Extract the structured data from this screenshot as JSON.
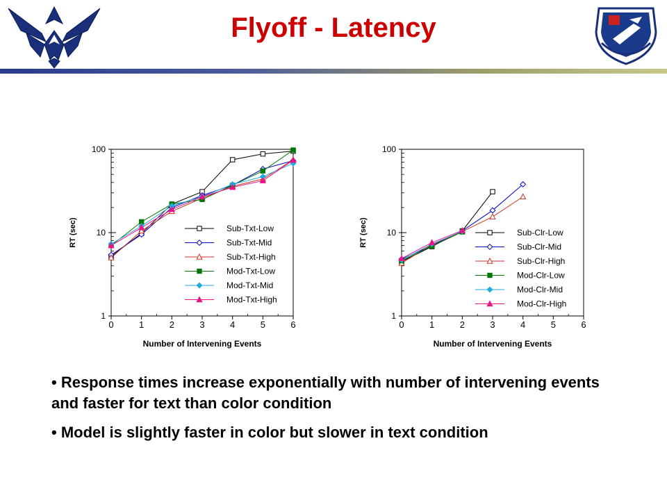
{
  "slide": {
    "title": "Flyoff - Latency",
    "bullets": [
      "• Response times increase exponentially with number of intervening events and faster for text than color condition",
      "• Model is slightly faster in color but slower in text condition"
    ]
  },
  "colors": {
    "title": "#cc0000",
    "series": [
      "#000000",
      "#0000cc",
      "#cc3322",
      "#007700",
      "#22aadd",
      "#ee1188"
    ]
  },
  "chart_data": [
    {
      "type": "line",
      "xlabel": "Number of Intervening Events",
      "ylabel": "RT (sec)",
      "y_scale": "log",
      "xlim": [
        0,
        6
      ],
      "ylim": [
        1,
        100
      ],
      "x_ticks": [
        "0",
        "1",
        "2",
        "3",
        "4",
        "5",
        "6"
      ],
      "y_ticks": [
        "1",
        "10",
        "100"
      ],
      "legend_position": "bottom-right",
      "series": [
        {
          "name": "Sub-Txt-Low",
          "marker": "square-open",
          "color": "#000000",
          "x": [
            0,
            1,
            2,
            3,
            4,
            5,
            6
          ],
          "y": [
            5.2,
            9.8,
            22,
            31,
            75,
            88,
            95
          ]
        },
        {
          "name": "Sub-Txt-Mid",
          "marker": "diamond-open",
          "color": "#0000cc",
          "x": [
            0,
            1,
            2,
            3,
            4,
            5,
            6
          ],
          "y": [
            5.4,
            9.5,
            20,
            28,
            37,
            58,
            73
          ]
        },
        {
          "name": "Sub-Txt-High",
          "marker": "triangle-open",
          "color": "#cc3322",
          "x": [
            0,
            1,
            2,
            3,
            4,
            5,
            6
          ],
          "y": [
            5.0,
            10.5,
            18,
            26,
            36,
            44,
            75
          ]
        },
        {
          "name": "Mod-Txt-Low",
          "marker": "square-filled",
          "color": "#007700",
          "x": [
            0,
            1,
            2,
            3,
            4,
            5,
            6
          ],
          "y": [
            7.0,
            13.5,
            22,
            25,
            37,
            55,
            98
          ]
        },
        {
          "name": "Mod-Txt-Mid",
          "marker": "diamond-filled",
          "color": "#22aadd",
          "x": [
            0,
            1,
            2,
            3,
            4,
            5,
            6
          ],
          "y": [
            7.3,
            12,
            21,
            27,
            38,
            47,
            68
          ]
        },
        {
          "name": "Mod-Txt-High",
          "marker": "triangle-filled",
          "color": "#ee1188",
          "x": [
            0,
            1,
            2,
            3,
            4,
            5,
            6
          ],
          "y": [
            7.0,
            11.5,
            19,
            27,
            35,
            42,
            74
          ]
        }
      ]
    },
    {
      "type": "line",
      "xlabel": "Number of Intervening Events",
      "ylabel": "RT (sec)",
      "y_scale": "log",
      "xlim": [
        0,
        6
      ],
      "ylim": [
        1,
        100
      ],
      "x_ticks": [
        "0",
        "1",
        "2",
        "3",
        "4",
        "5",
        "6"
      ],
      "y_ticks": [
        "1",
        "10",
        "100"
      ],
      "legend_position": "bottom-right",
      "series": [
        {
          "name": "Sub-Clr-Low",
          "marker": "square-open",
          "color": "#000000",
          "x": [
            0,
            1,
            2,
            3
          ],
          "y": [
            4.5,
            6.8,
            10.5,
            31
          ]
        },
        {
          "name": "Sub-Clr-Mid",
          "marker": "diamond-open",
          "color": "#0000cc",
          "x": [
            0,
            1,
            2,
            3,
            4
          ],
          "y": [
            4.8,
            7.0,
            10.5,
            18.5,
            38
          ]
        },
        {
          "name": "Sub-Clr-High",
          "marker": "triangle-open",
          "color": "#cc3322",
          "x": [
            0,
            1,
            2,
            3,
            4
          ],
          "y": [
            4.3,
            7.2,
            10.3,
            15.5,
            27
          ]
        },
        {
          "name": "Mod-Clr-Low",
          "marker": "square-filled",
          "color": "#007700",
          "x": [
            0,
            1,
            2
          ],
          "y": [
            4.6,
            6.9,
            10.2
          ]
        },
        {
          "name": "Mod-Clr-Mid",
          "marker": "diamond-filled",
          "color": "#22aadd",
          "x": [
            0,
            1,
            2
          ],
          "y": [
            4.7,
            7.3,
            10.4
          ]
        },
        {
          "name": "Mod-Clr-High",
          "marker": "triangle-filled",
          "color": "#ee1188",
          "x": [
            0,
            1,
            2
          ],
          "y": [
            4.9,
            7.6,
            10.6
          ]
        }
      ]
    }
  ]
}
